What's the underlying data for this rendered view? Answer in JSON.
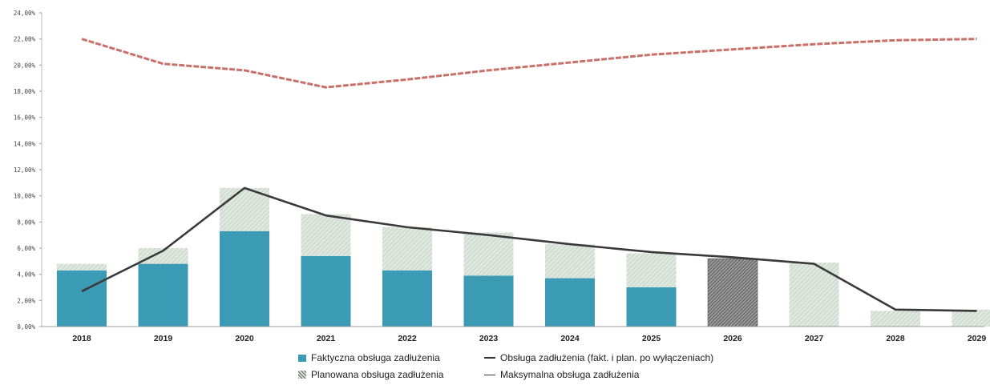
{
  "chart_data": {
    "type": "bar",
    "categories": [
      "2018",
      "2019",
      "2020",
      "2021",
      "2022",
      "2023",
      "2024",
      "2025",
      "2026",
      "2027",
      "2028",
      "2029"
    ],
    "ylim": [
      0,
      24
    ],
    "yticks": [
      "0,00%",
      "2,00%",
      "4,00%",
      "6,00%",
      "8,00%",
      "10,00%",
      "12,00%",
      "14,00%",
      "16,00%",
      "18,00%",
      "20,00%",
      "22,00%",
      "24,00%"
    ],
    "grid": false,
    "legend_position": "bottom",
    "series": [
      {
        "name": "Faktyczna obsługa zadłużenia",
        "kind": "bar",
        "color": "#3c9bb4",
        "values": [
          4.3,
          4.8,
          7.3,
          5.4,
          4.3,
          3.9,
          3.7,
          3.0,
          0,
          0,
          0,
          0
        ]
      },
      {
        "name": "Planowana obsługa zadłużenia",
        "kind": "bar-hatched",
        "color": "#cfe0d2",
        "values": [
          0.5,
          1.2,
          3.3,
          3.2,
          3.3,
          3.3,
          2.6,
          2.6,
          5.2,
          4.9,
          1.2,
          1.3
        ]
      },
      {
        "name": "Obsługa zadłużenia (fakt. i plan. po wyłączeniach)",
        "kind": "line",
        "color": "#3a3a3a",
        "values": [
          2.7,
          5.8,
          10.6,
          8.5,
          7.6,
          7.0,
          6.3,
          5.7,
          5.3,
          4.8,
          1.3,
          1.2
        ]
      },
      {
        "name": "Maksymalna obsługa zadłużenia",
        "kind": "line-dashed",
        "color": "#c9706a",
        "values": [
          22.0,
          20.1,
          19.6,
          18.3,
          18.9,
          19.6,
          20.2,
          20.8,
          21.2,
          21.6,
          21.9,
          22.0
        ]
      }
    ]
  },
  "legend": {
    "actual": "Faktyczna obsługa zadłużenia",
    "planned": "Planowana obsługa zadłużenia",
    "after_exclusions": "Obsługa zadłużenia (fakt. i plan. po wyłączeniach)",
    "max": "Maksymalna obsługa zadłużenia"
  }
}
